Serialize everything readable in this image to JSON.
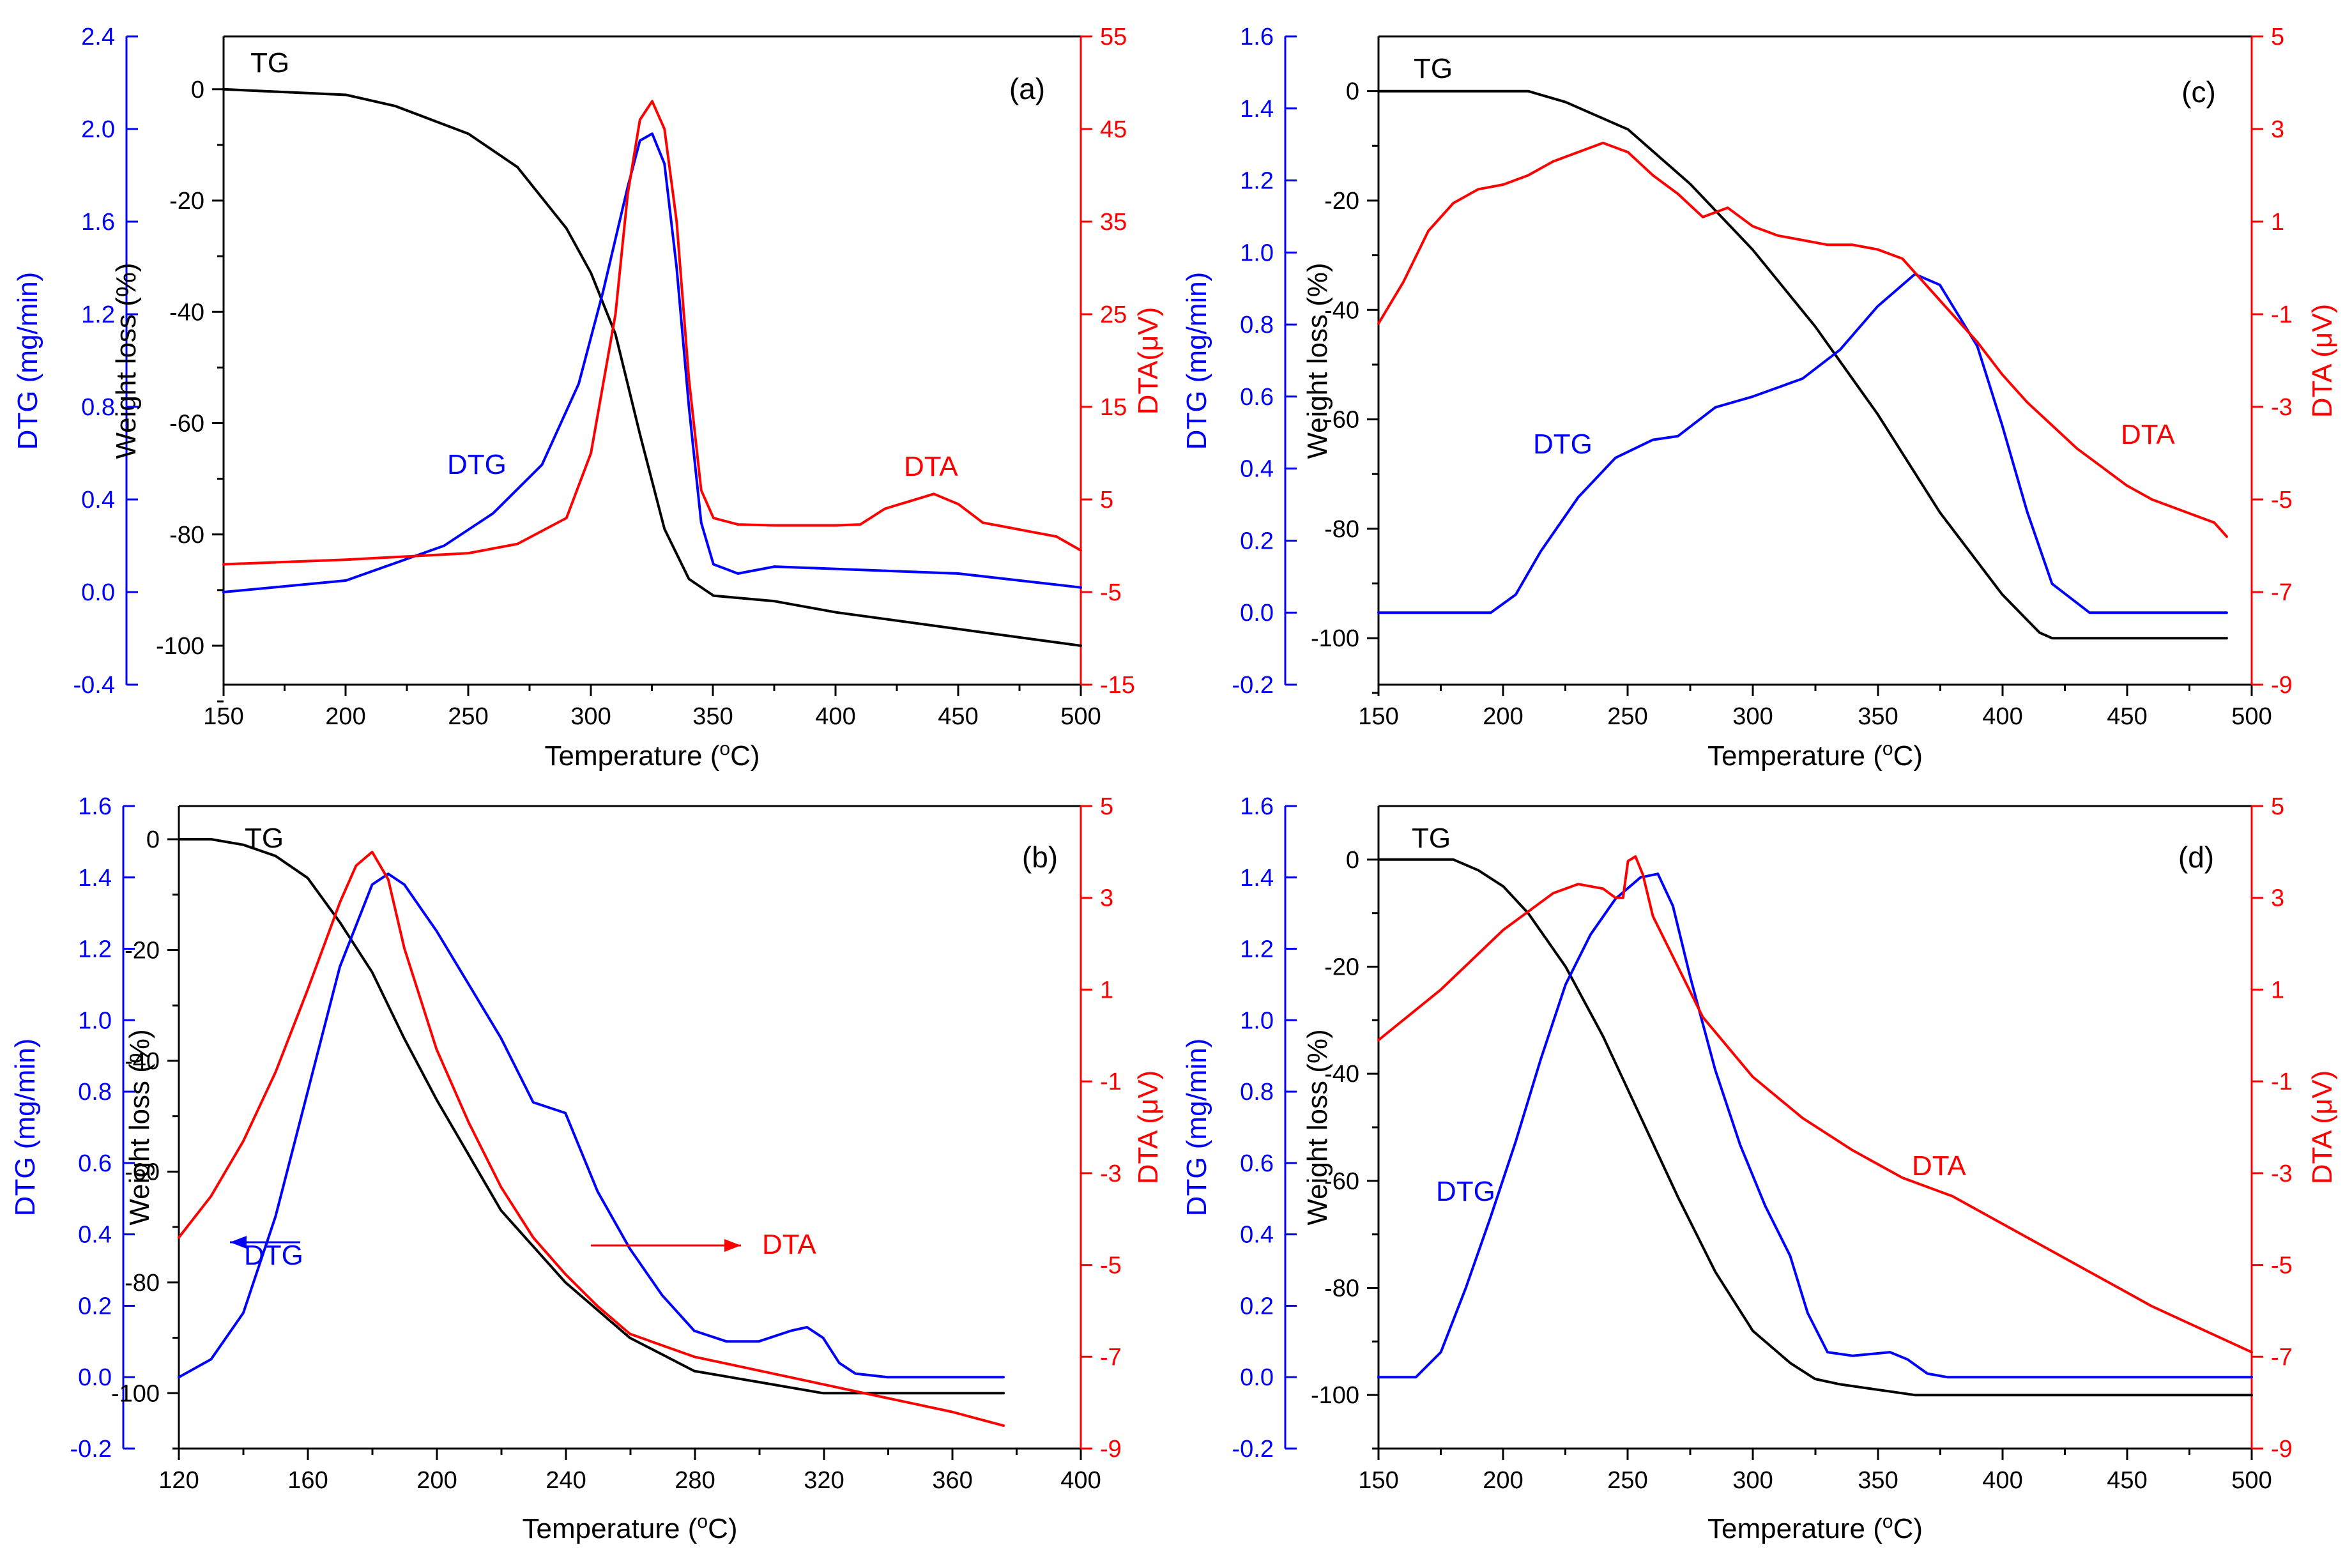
{
  "chart_data": [
    {
      "panel_label": "(a)",
      "type": "line",
      "xlabel": "Temperature (",
      "xlabel_sup": "o",
      "xlabel_unit": "C)",
      "x_range": [
        150,
        500
      ],
      "x_ticks": [
        "150",
        "200",
        "250",
        "300",
        "350",
        "400",
        "450",
        "500"
      ],
      "y_tg": {
        "label": "Weight loss (%)",
        "range": [
          -107,
          9.5
        ],
        "ticks": [
          "0",
          "-20",
          "-40",
          "-60",
          "-80",
          "-100"
        ],
        "tick_values": [
          0,
          -20,
          -40,
          -60,
          -80,
          -100
        ]
      },
      "y_dtg": {
        "label": "DTG (mg/min)",
        "range": [
          -0.4,
          2.4
        ],
        "ticks": [
          "2.4",
          "2.0",
          "1.6",
          "1.2",
          "0.8",
          "0.4",
          "0.0",
          "-0.4"
        ],
        "tick_values": [
          2.4,
          2.0,
          1.6,
          1.2,
          0.8,
          0.4,
          0.0,
          -0.4
        ]
      },
      "y_dta": {
        "label": "DTA(μV)",
        "range": [
          -15,
          55
        ],
        "ticks": [
          "55",
          "45",
          "35",
          "25",
          "15",
          "5",
          "-5",
          "-15"
        ],
        "tick_values": [
          55,
          45,
          35,
          25,
          15,
          5,
          -5,
          -15
        ]
      },
      "annotations": {
        "tg": "TG",
        "dtg": "DTG",
        "dta": "DTA"
      },
      "series": [
        {
          "name": "TG",
          "axis": "tg",
          "color": "#000000",
          "x": [
            150,
            200,
            220,
            250,
            270,
            290,
            300,
            310,
            320,
            330,
            340,
            350,
            375,
            400,
            450,
            500
          ],
          "y": [
            0,
            -1,
            -3,
            -8,
            -14,
            -25,
            -33,
            -44,
            -62,
            -79,
            -88,
            -91,
            -92,
            -94,
            -97,
            -100
          ]
        },
        {
          "name": "DTG",
          "axis": "dtg",
          "color": "#0000ff",
          "x": [
            150,
            200,
            240,
            260,
            280,
            295,
            305,
            315,
            320,
            325,
            330,
            335,
            340,
            345,
            350,
            360,
            375,
            400,
            450,
            500
          ],
          "y": [
            0.0,
            0.05,
            0.2,
            0.34,
            0.55,
            0.9,
            1.3,
            1.75,
            1.95,
            1.98,
            1.85,
            1.4,
            0.8,
            0.3,
            0.12,
            0.08,
            0.11,
            0.1,
            0.08,
            0.02
          ]
        },
        {
          "name": "DTA",
          "axis": "dta",
          "color": "#ff0000",
          "x": [
            150,
            200,
            250,
            270,
            290,
            300,
            310,
            315,
            320,
            325,
            330,
            335,
            340,
            345,
            350,
            360,
            375,
            400,
            410,
            420,
            430,
            440,
            450,
            460,
            470,
            480,
            490,
            500
          ],
          "y": [
            -2,
            -1.5,
            -0.8,
            0.2,
            3,
            10,
            25,
            38,
            46,
            48,
            45,
            35,
            18,
            6,
            3,
            2.3,
            2.2,
            2.2,
            2.3,
            4,
            4.8,
            5.6,
            4.5,
            2.5,
            2,
            1.5,
            1,
            -0.5
          ]
        }
      ]
    },
    {
      "panel_label": "(b)",
      "type": "line",
      "xlabel": "Temperature (",
      "xlabel_sup": "o",
      "xlabel_unit": "C)",
      "x_range": [
        120,
        400
      ],
      "x_ticks": [
        "120",
        "160",
        "200",
        "240",
        "280",
        "320",
        "360",
        "400"
      ],
      "y_tg": {
        "label": "Weight loss (%)",
        "range": [
          -110,
          6
        ],
        "ticks": [
          "0",
          "-20",
          "-40",
          "-60",
          "-80",
          "-100"
        ],
        "tick_values": [
          0,
          -20,
          -40,
          -60,
          -80,
          -100
        ]
      },
      "y_dtg": {
        "label": "DTG (mg/min)",
        "range": [
          -0.2,
          1.6
        ],
        "ticks": [
          "1.6",
          "1.4",
          "1.2",
          "1.0",
          "0.8",
          "0.6",
          "0.4",
          "0.2",
          "0.0",
          "-0.2"
        ],
        "tick_values": [
          1.6,
          1.4,
          1.2,
          1.0,
          0.8,
          0.6,
          0.4,
          0.2,
          0.0,
          -0.2
        ]
      },
      "y_dta": {
        "label": "DTA (μV)",
        "range": [
          -9,
          5
        ],
        "ticks": [
          "5",
          "3",
          "1",
          "-1",
          "-3",
          "-5",
          "-7",
          "-9"
        ],
        "tick_values": [
          5,
          3,
          1,
          -1,
          -3,
          -5,
          -7,
          -9
        ]
      },
      "annotations": {
        "tg": "TG",
        "dtg": "DTG",
        "dta": "DTA"
      },
      "series": [
        {
          "name": "TG",
          "axis": "tg",
          "color": "#000000",
          "x": [
            120,
            130,
            140,
            150,
            160,
            170,
            180,
            190,
            200,
            220,
            240,
            260,
            280,
            300,
            320,
            340,
            360,
            376
          ],
          "y": [
            0,
            0,
            -1,
            -3,
            -7,
            -15,
            -24,
            -36,
            -47,
            -67,
            -80,
            -90,
            -96,
            -98,
            -100,
            -100,
            -100,
            -100
          ]
        },
        {
          "name": "DTG",
          "axis": "dtg",
          "color": "#0000ff",
          "x": [
            120,
            130,
            140,
            150,
            160,
            170,
            180,
            185,
            190,
            200,
            210,
            220,
            230,
            240,
            250,
            260,
            270,
            280,
            290,
            300,
            310,
            315,
            320,
            325,
            330,
            340,
            376
          ],
          "y": [
            0.0,
            0.05,
            0.18,
            0.45,
            0.8,
            1.15,
            1.38,
            1.41,
            1.38,
            1.25,
            1.1,
            0.95,
            0.77,
            0.74,
            0.52,
            0.36,
            0.23,
            0.13,
            0.1,
            0.1,
            0.13,
            0.14,
            0.11,
            0.04,
            0.01,
            0.0,
            0.0
          ]
        },
        {
          "name": "DTA",
          "axis": "dta",
          "color": "#ff0000",
          "x": [
            120,
            130,
            140,
            150,
            160,
            170,
            175,
            180,
            185,
            190,
            200,
            210,
            220,
            230,
            240,
            250,
            260,
            280,
            300,
            320,
            340,
            360,
            376
          ],
          "y": [
            -4.4,
            -3.5,
            -2.3,
            -0.8,
            1,
            2.9,
            3.7,
            4,
            3.4,
            1.9,
            -0.3,
            -1.9,
            -3.3,
            -4.4,
            -5.2,
            -5.9,
            -6.5,
            -7,
            -7.3,
            -7.6,
            -7.9,
            -8.2,
            -8.5
          ]
        }
      ],
      "arrows": [
        {
          "series": "DTG",
          "direction": "left",
          "color": "#0000ff"
        },
        {
          "series": "DTA",
          "direction": "right",
          "color": "#ff0000"
        }
      ]
    },
    {
      "panel_label": "(c)",
      "type": "line",
      "xlabel": "Temperature (",
      "xlabel_sup": "o",
      "xlabel_unit": "C)",
      "x_range": [
        150,
        500
      ],
      "x_ticks": [
        "150",
        "200",
        "250",
        "300",
        "350",
        "400",
        "450",
        "500"
      ],
      "y_tg": {
        "label": "Weight loss (%)",
        "range": [
          -108.5,
          10
        ],
        "ticks": [
          "0",
          "-20",
          "-40",
          "-60",
          "-80",
          "-100"
        ],
        "tick_values": [
          0,
          -20,
          -40,
          -60,
          -80,
          -100
        ]
      },
      "y_dtg": {
        "label": "DTG (mg/min)",
        "range": [
          -0.2,
          1.6
        ],
        "ticks": [
          "1.6",
          "1.4",
          "1.2",
          "1.0",
          "0.8",
          "0.6",
          "0.4",
          "0.2",
          "0.0",
          "-0.2"
        ],
        "tick_values": [
          1.6,
          1.4,
          1.2,
          1.0,
          0.8,
          0.6,
          0.4,
          0.2,
          0.0,
          -0.2
        ]
      },
      "y_dta": {
        "label": "DTA (μV)",
        "range": [
          -9,
          5
        ],
        "ticks": [
          "5",
          "3",
          "1",
          "-1",
          "-3",
          "-5",
          "-7",
          "-9"
        ],
        "tick_values": [
          5,
          3,
          1,
          -1,
          -3,
          -5,
          -7,
          -9
        ]
      },
      "annotations": {
        "tg": "TG",
        "dtg": "DTG",
        "dta": "DTA"
      },
      "series": [
        {
          "name": "TG",
          "axis": "tg",
          "color": "#000000",
          "x": [
            150,
            210,
            225,
            250,
            275,
            300,
            325,
            350,
            375,
            400,
            415,
            420,
            490
          ],
          "y": [
            0,
            0,
            -2,
            -7,
            -17,
            -29,
            -43,
            -59,
            -77,
            -92,
            -99,
            -100,
            -100
          ]
        },
        {
          "name": "DTG",
          "axis": "dtg",
          "color": "#0000ff",
          "x": [
            150,
            195,
            205,
            215,
            230,
            245,
            260,
            270,
            285,
            300,
            320,
            335,
            350,
            365,
            375,
            390,
            400,
            410,
            420,
            435,
            490
          ],
          "y": [
            0.0,
            0.0,
            0.05,
            0.17,
            0.32,
            0.43,
            0.48,
            0.49,
            0.57,
            0.6,
            0.65,
            0.73,
            0.85,
            0.94,
            0.91,
            0.74,
            0.52,
            0.28,
            0.08,
            0.0,
            0.0
          ]
        },
        {
          "name": "DTA",
          "axis": "dta",
          "color": "#ff0000",
          "x": [
            150,
            160,
            170,
            180,
            190,
            200,
            210,
            220,
            230,
            240,
            250,
            260,
            270,
            280,
            285,
            290,
            300,
            310,
            320,
            330,
            340,
            350,
            360,
            370,
            380,
            390,
            400,
            410,
            420,
            430,
            440,
            450,
            460,
            470,
            480,
            485,
            490
          ],
          "y": [
            -1.2,
            -0.3,
            0.8,
            1.4,
            1.7,
            1.8,
            2.0,
            2.3,
            2.5,
            2.7,
            2.5,
            2.0,
            1.6,
            1.1,
            1.2,
            1.3,
            0.9,
            0.7,
            0.6,
            0.5,
            0.5,
            0.4,
            0.2,
            -0.4,
            -1.0,
            -1.6,
            -2.3,
            -2.9,
            -3.4,
            -3.9,
            -4.3,
            -4.7,
            -5.0,
            -5.2,
            -5.4,
            -5.5,
            -5.8
          ]
        }
      ]
    },
    {
      "panel_label": "(d)",
      "type": "line",
      "xlabel": "Temperature (",
      "xlabel_sup": "o",
      "xlabel_unit": "C)",
      "x_range": [
        150,
        500
      ],
      "x_ticks": [
        "150",
        "200",
        "250",
        "300",
        "350",
        "400",
        "450",
        "500"
      ],
      "y_tg": {
        "label": "Weight loss (%)",
        "range": [
          -110,
          10
        ],
        "ticks": [
          "0",
          "-20",
          "-40",
          "-60",
          "-80",
          "-100"
        ],
        "tick_values": [
          0,
          -20,
          -40,
          -60,
          -80,
          -100
        ]
      },
      "y_dtg": {
        "label": "DTG (mg/min)",
        "range": [
          -0.2,
          1.6
        ],
        "ticks": [
          "1.6",
          "1.4",
          "1.2",
          "1.0",
          "0.8",
          "0.6",
          "0.4",
          "0.2",
          "0.0",
          "-0.2"
        ],
        "tick_values": [
          1.6,
          1.4,
          1.2,
          1.0,
          0.8,
          0.6,
          0.4,
          0.2,
          0.0,
          -0.2
        ]
      },
      "y_dta": {
        "label": "DTA (μV)",
        "range": [
          -9,
          5
        ],
        "ticks": [
          "5",
          "3",
          "1",
          "-1",
          "-3",
          "-5",
          "-7",
          "-9"
        ],
        "tick_values": [
          5,
          3,
          1,
          -1,
          -3,
          -5,
          -7,
          -9
        ]
      },
      "annotations": {
        "tg": "TG",
        "dtg": "DTG",
        "dta": "DTA"
      },
      "series": [
        {
          "name": "TG",
          "axis": "tg",
          "color": "#000000",
          "x": [
            150,
            180,
            190,
            200,
            210,
            225,
            240,
            255,
            270,
            285,
            300,
            315,
            325,
            335,
            350,
            365,
            500
          ],
          "y": [
            0,
            0,
            -2,
            -5,
            -10,
            -20,
            -33,
            -48,
            -63,
            -77,
            -88,
            -94,
            -97,
            -98,
            -99,
            -100,
            -100
          ]
        },
        {
          "name": "DTG",
          "axis": "dtg",
          "color": "#0000ff",
          "x": [
            150,
            165,
            175,
            185,
            195,
            205,
            215,
            225,
            235,
            245,
            255,
            262,
            268,
            275,
            285,
            295,
            305,
            315,
            322,
            330,
            340,
            355,
            362,
            370,
            378,
            500
          ],
          "y": [
            0.0,
            0.0,
            0.07,
            0.25,
            0.45,
            0.66,
            0.89,
            1.1,
            1.24,
            1.34,
            1.4,
            1.41,
            1.32,
            1.12,
            0.86,
            0.65,
            0.48,
            0.34,
            0.18,
            0.07,
            0.06,
            0.07,
            0.05,
            0.01,
            0.0,
            0.0
          ]
        },
        {
          "name": "DTA",
          "axis": "dta",
          "color": "#ff0000",
          "x": [
            150,
            175,
            200,
            220,
            230,
            240,
            245,
            248,
            250,
            253,
            256,
            260,
            270,
            280,
            300,
            320,
            340,
            360,
            380,
            400,
            420,
            440,
            460,
            480,
            500
          ],
          "y": [
            -0.1,
            1.0,
            2.3,
            3.1,
            3.3,
            3.2,
            3.0,
            3.0,
            3.8,
            3.9,
            3.5,
            2.6,
            1.5,
            0.4,
            -0.9,
            -1.8,
            -2.5,
            -3.1,
            -3.5,
            -4.1,
            -4.7,
            -5.3,
            -5.9,
            -6.4,
            -6.9
          ]
        }
      ]
    }
  ]
}
